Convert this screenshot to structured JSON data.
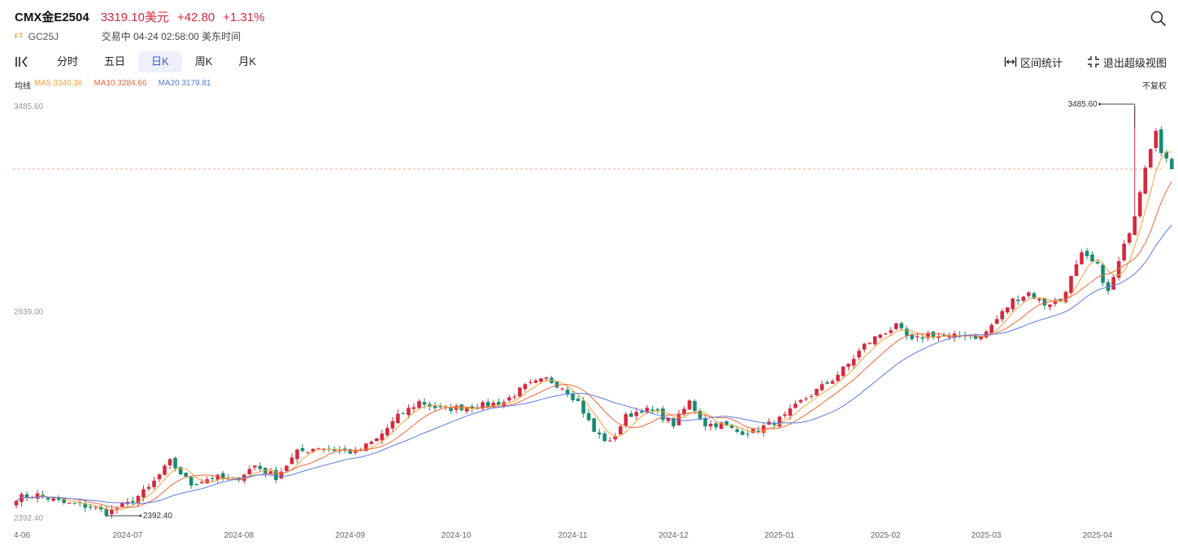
{
  "header": {
    "symbol": "CMX金E2504",
    "price": "3319.10美元",
    "change": "+42.80",
    "change_pct": "+1.31%",
    "exchange_badge": "FT",
    "code": "GC25J",
    "status": "交易中 04-24 02:58:00 美东时间"
  },
  "toolbar": {
    "tabs": [
      {
        "label": "分时",
        "active": false
      },
      {
        "label": "五日",
        "active": false
      },
      {
        "label": "日K",
        "active": true
      },
      {
        "label": "周K",
        "active": false
      },
      {
        "label": "月K",
        "active": false
      }
    ],
    "interval_stats": "区间统计",
    "exit_fullscreen": "退出超级视图",
    "adjust_label": "不复权"
  },
  "ma_legend": {
    "label": "均线",
    "ma5": "MA5 3340.36",
    "ma10": "MA10 3284.66",
    "ma20": "MA20 3179.81"
  },
  "colors": {
    "up": "#d5293f",
    "down": "#1a8a72",
    "ma5": "#f5a33c",
    "ma10": "#f2683a",
    "ma20": "#5b7be6",
    "last_price_line": "#f5a58a",
    "tab_active_bg": "#eef1fb",
    "tab_active_text": "#3c5bd6"
  },
  "icons": {
    "search": "search-icon",
    "collapse": "collapse-icon",
    "stats": "interval-stats-icon",
    "fullscreen": "exit-fullscreen-icon"
  },
  "chart_data": {
    "type": "candlestick",
    "title": "CMX金E2504 日K",
    "y_axis_labels": [
      "3485.60",
      "2939.00",
      "2392.40"
    ],
    "ylim": [
      2392.4,
      3485.6
    ],
    "x_tick_labels": [
      "4-06",
      "2024-07",
      "2024-08",
      "2024-09",
      "2024-10",
      "2024-11",
      "2024-12",
      "2025-01",
      "2025-02",
      "2025-03",
      "2025-04"
    ],
    "x_tick_index": [
      0,
      21,
      42,
      63,
      83,
      105,
      124,
      144,
      164,
      183,
      204
    ],
    "last_price": 3319.1,
    "high_marker": {
      "label": "3485.60",
      "index": 211
    },
    "low_marker": {
      "label": "2392.40",
      "index": 17
    },
    "ma_series": [
      {
        "name": "MA5",
        "period": 5,
        "last": 3340.36
      },
      {
        "name": "MA10",
        "period": 10,
        "last": 3284.66
      },
      {
        "name": "MA20",
        "period": 20,
        "last": 3179.81
      }
    ],
    "close_path": [
      [
        0,
        2445
      ],
      [
        4,
        2452
      ],
      [
        9,
        2430
      ],
      [
        14,
        2421
      ],
      [
        17,
        2405
      ],
      [
        21,
        2428
      ],
      [
        25,
        2470
      ],
      [
        29,
        2540
      ],
      [
        33,
        2480
      ],
      [
        37,
        2500
      ],
      [
        41,
        2490
      ],
      [
        45,
        2530
      ],
      [
        49,
        2500
      ],
      [
        53,
        2565
      ],
      [
        57,
        2580
      ],
      [
        61,
        2570
      ],
      [
        64,
        2565
      ],
      [
        68,
        2600
      ],
      [
        72,
        2660
      ],
      [
        76,
        2700
      ],
      [
        80,
        2680
      ],
      [
        84,
        2685
      ],
      [
        88,
        2690
      ],
      [
        92,
        2700
      ],
      [
        96,
        2740
      ],
      [
        100,
        2760
      ],
      [
        103,
        2740
      ],
      [
        106,
        2700
      ],
      [
        109,
        2620
      ],
      [
        112,
        2590
      ],
      [
        115,
        2660
      ],
      [
        118,
        2680
      ],
      [
        121,
        2670
      ],
      [
        124,
        2640
      ],
      [
        127,
        2700
      ],
      [
        130,
        2640
      ],
      [
        133,
        2640
      ],
      [
        136,
        2620
      ],
      [
        139,
        2620
      ],
      [
        142,
        2640
      ],
      [
        145,
        2660
      ],
      [
        148,
        2700
      ],
      [
        151,
        2730
      ],
      [
        154,
        2760
      ],
      [
        157,
        2800
      ],
      [
        160,
        2850
      ],
      [
        163,
        2880
      ],
      [
        166,
        2900
      ],
      [
        169,
        2860
      ],
      [
        172,
        2880
      ],
      [
        176,
        2870
      ],
      [
        179,
        2880
      ],
      [
        182,
        2870
      ],
      [
        185,
        2920
      ],
      [
        188,
        2970
      ],
      [
        191,
        2990
      ],
      [
        194,
        2960
      ],
      [
        197,
        2970
      ],
      [
        199,
        3030
      ],
      [
        201,
        3090
      ],
      [
        204,
        3060
      ],
      [
        206,
        2990
      ],
      [
        208,
        3070
      ],
      [
        211,
        3200
      ],
      [
        213,
        3330
      ],
      [
        215,
        3430
      ],
      [
        216,
        3360
      ],
      [
        218,
        3319
      ]
    ]
  }
}
